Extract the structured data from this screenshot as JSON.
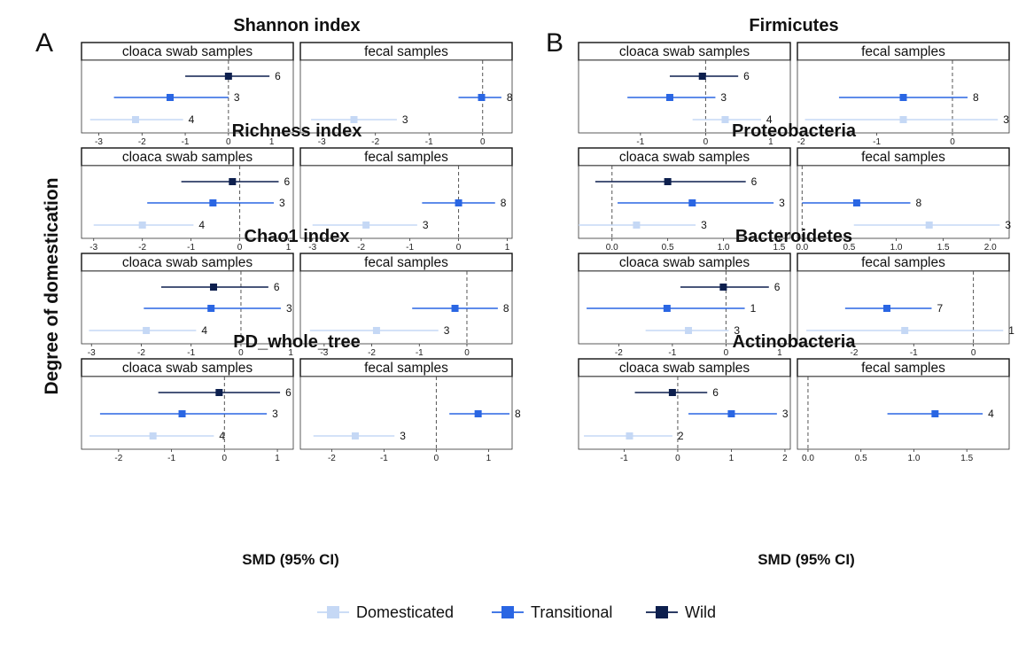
{
  "figure": {
    "panel_labels": [
      "A",
      "B"
    ],
    "ylabel": "Degree of domestication",
    "xlabel": "SMD (95% CI)",
    "facets": [
      "cloaca swab samples",
      "fecal samples"
    ],
    "legend": {
      "placement": "bottom-center",
      "items": [
        {
          "label": "Domesticated",
          "color": "#c5d8f5"
        },
        {
          "label": "Transitional",
          "color": "#2a66e3"
        },
        {
          "label": "Wild",
          "color": "#0d1f4e"
        }
      ]
    }
  },
  "chart_data": [
    {
      "type": "forest",
      "panel": "A",
      "title": "Shannon index",
      "facets": [
        {
          "name": "cloaca swab samples",
          "xlim": [
            -3.4,
            1.5
          ],
          "ticks": [
            -3,
            -2,
            -1,
            0,
            1
          ],
          "rows": [
            {
              "group": "Wild",
              "est": 0.0,
              "lo": -1.0,
              "hi": 0.95,
              "n": "6"
            },
            {
              "group": "Transitional",
              "est": -1.35,
              "lo": -2.65,
              "hi": 0.0,
              "n": "3"
            },
            {
              "group": "Domesticated",
              "est": -2.15,
              "lo": -3.2,
              "hi": -1.05,
              "n": "4"
            }
          ]
        },
        {
          "name": "fecal samples",
          "xlim": [
            -3.4,
            0.55
          ],
          "ticks": [
            -3,
            -2,
            -1,
            0
          ],
          "rows": [
            {
              "group": "Transitional",
              "est": -0.02,
              "lo": -0.45,
              "hi": 0.35,
              "n": "8"
            },
            {
              "group": "Domesticated",
              "est": -2.4,
              "lo": -3.2,
              "hi": -1.6,
              "n": "3"
            }
          ]
        }
      ]
    },
    {
      "type": "forest",
      "panel": "A",
      "title": "Richness index",
      "facets": [
        {
          "name": "cloaca swab samples",
          "xlim": [
            -3.25,
            1.1
          ],
          "ticks": [
            -3,
            -2,
            -1,
            0,
            1
          ],
          "rows": [
            {
              "group": "Wild",
              "est": -0.15,
              "lo": -1.2,
              "hi": 0.8,
              "n": "6"
            },
            {
              "group": "Transitional",
              "est": -0.55,
              "lo": -1.9,
              "hi": 0.7,
              "n": "3"
            },
            {
              "group": "Domesticated",
              "est": -2.0,
              "lo": -3.0,
              "hi": -0.95,
              "n": "4"
            }
          ]
        },
        {
          "name": "fecal samples",
          "xlim": [
            -3.25,
            1.1
          ],
          "ticks": [
            -3,
            -2,
            -1,
            0,
            1
          ],
          "rows": [
            {
              "group": "Transitional",
              "est": 0.0,
              "lo": -0.75,
              "hi": 0.75,
              "n": "8"
            },
            {
              "group": "Domesticated",
              "est": -1.9,
              "lo": -3.0,
              "hi": -0.85,
              "n": "3"
            }
          ]
        }
      ]
    },
    {
      "type": "forest",
      "panel": "A",
      "title": "Chao1 index",
      "facets": [
        {
          "name": "cloaca swab samples",
          "xlim": [
            -3.2,
            1.05
          ],
          "ticks": [
            -3,
            -2,
            -1,
            0,
            1
          ],
          "rows": [
            {
              "group": "Wild",
              "est": -0.55,
              "lo": -1.6,
              "hi": 0.55,
              "n": "6"
            },
            {
              "group": "Transitional",
              "est": -0.6,
              "lo": -1.95,
              "hi": 0.8,
              "n": "3"
            },
            {
              "group": "Domesticated",
              "est": -1.9,
              "lo": -3.05,
              "hi": -0.9,
              "n": "4"
            }
          ]
        },
        {
          "name": "fecal samples",
          "xlim": [
            -3.5,
            0.95
          ],
          "ticks": [
            -3,
            -2,
            -1,
            0
          ],
          "rows": [
            {
              "group": "Transitional",
              "est": -0.25,
              "lo": -1.15,
              "hi": 0.65,
              "n": "8"
            },
            {
              "group": "Domesticated",
              "est": -1.9,
              "lo": -3.3,
              "hi": -0.6,
              "n": "3"
            }
          ]
        }
      ]
    },
    {
      "type": "forest",
      "panel": "A",
      "title": "PD_whole_tree",
      "facets": [
        {
          "name": "cloaca swab samples",
          "xlim": [
            -2.7,
            1.3
          ],
          "ticks": [
            -2,
            -1,
            0,
            1
          ],
          "rows": [
            {
              "group": "Wild",
              "est": -0.1,
              "lo": -1.25,
              "hi": 1.05,
              "n": "6"
            },
            {
              "group": "Transitional",
              "est": -0.8,
              "lo": -2.35,
              "hi": 0.8,
              "n": "3"
            },
            {
              "group": "Domesticated",
              "est": -1.35,
              "lo": -2.55,
              "hi": -0.2,
              "n": "4"
            }
          ]
        },
        {
          "name": "fecal samples",
          "xlim": [
            -2.6,
            1.45
          ],
          "ticks": [
            -2,
            -1,
            0,
            1
          ],
          "rows": [
            {
              "group": "Transitional",
              "est": 0.8,
              "lo": 0.25,
              "hi": 1.4,
              "n": "8"
            },
            {
              "group": "Domesticated",
              "est": -1.55,
              "lo": -2.35,
              "hi": -0.8,
              "n": "3"
            }
          ]
        }
      ]
    },
    {
      "type": "forest",
      "panel": "B",
      "title": "Firmicutes",
      "facets": [
        {
          "name": "cloaca swab samples",
          "xlim": [
            -1.95,
            1.3
          ],
          "ticks": [
            -1,
            0,
            1
          ],
          "rows": [
            {
              "group": "Wild",
              "est": -0.05,
              "lo": -0.55,
              "hi": 0.5,
              "n": "6"
            },
            {
              "group": "Transitional",
              "est": -0.55,
              "lo": -1.2,
              "hi": 0.15,
              "n": "3"
            },
            {
              "group": "Domesticated",
              "est": 0.3,
              "lo": -0.2,
              "hi": 0.85,
              "n": "4"
            }
          ]
        },
        {
          "name": "fecal samples",
          "xlim": [
            -2.05,
            0.75
          ],
          "ticks": [
            -2,
            -1,
            0
          ],
          "rows": [
            {
              "group": "Transitional",
              "est": -0.65,
              "lo": -1.5,
              "hi": 0.2,
              "n": "8"
            },
            {
              "group": "Domesticated",
              "est": -0.65,
              "lo": -1.95,
              "hi": 0.6,
              "n": "3"
            }
          ]
        }
      ]
    },
    {
      "type": "forest",
      "panel": "B",
      "title": "Proteobacteria",
      "facets": [
        {
          "name": "cloaca swab samples",
          "xlim": [
            -0.3,
            1.6
          ],
          "ticks": [
            0.0,
            0.5,
            1.0,
            1.5
          ],
          "tick_labels": [
            "0.0",
            "0.5",
            "1.0",
            "1.5"
          ],
          "rows": [
            {
              "group": "Wild",
              "est": 0.5,
              "lo": -0.15,
              "hi": 1.2,
              "n": "6"
            },
            {
              "group": "Transitional",
              "est": 0.72,
              "lo": 0.05,
              "hi": 1.45,
              "n": "3"
            },
            {
              "group": "Domesticated",
              "est": 0.22,
              "lo": -0.3,
              "hi": 0.75,
              "n": "3"
            }
          ]
        },
        {
          "name": "fecal samples",
          "xlim": [
            -0.05,
            2.2
          ],
          "ticks": [
            0.0,
            0.5,
            1.0,
            1.5,
            2.0
          ],
          "tick_labels": [
            "0.0",
            "0.5",
            "1.0",
            "1.5",
            "2.0"
          ],
          "rows": [
            {
              "group": "Transitional",
              "est": 0.58,
              "lo": 0.0,
              "hi": 1.15,
              "n": "8"
            },
            {
              "group": "Domesticated",
              "est": 1.35,
              "lo": 0.55,
              "hi": 2.1,
              "n": "3"
            }
          ]
        }
      ]
    },
    {
      "type": "forest",
      "panel": "B",
      "title": "Bacteroidetes",
      "facets": [
        {
          "name": "cloaca swab samples",
          "xlim": [
            -2.75,
            1.2
          ],
          "ticks": [
            -2,
            -1,
            0,
            1
          ],
          "rows": [
            {
              "group": "Wild",
              "est": -0.05,
              "lo": -0.85,
              "hi": 0.8,
              "n": "6"
            },
            {
              "group": "Transitional",
              "est": -1.1,
              "lo": -2.6,
              "hi": 0.35,
              "n": "1"
            },
            {
              "group": "Domesticated",
              "est": -0.7,
              "lo": -1.5,
              "hi": 0.05,
              "n": "3"
            }
          ]
        },
        {
          "name": "fecal samples",
          "xlim": [
            -2.95,
            0.6
          ],
          "ticks": [
            -2,
            -1,
            0
          ],
          "rows": [
            {
              "group": "Transitional",
              "est": -1.45,
              "lo": -2.15,
              "hi": -0.7,
              "n": "7"
            },
            {
              "group": "Domesticated",
              "est": -1.15,
              "lo": -2.8,
              "hi": 0.5,
              "n": "1"
            }
          ]
        }
      ]
    },
    {
      "type": "forest",
      "panel": "B",
      "title": "Actinobacteria",
      "facets": [
        {
          "name": "cloaca swab samples",
          "xlim": [
            -1.85,
            2.1
          ],
          "ticks": [
            -1,
            0,
            1,
            2
          ],
          "rows": [
            {
              "group": "Wild",
              "est": -0.1,
              "lo": -0.8,
              "hi": 0.55,
              "n": "6"
            },
            {
              "group": "Transitional",
              "est": 1.0,
              "lo": 0.2,
              "hi": 1.85,
              "n": "3"
            },
            {
              "group": "Domesticated",
              "est": -0.9,
              "lo": -1.75,
              "hi": -0.1,
              "n": "2"
            }
          ]
        },
        {
          "name": "fecal samples",
          "xlim": [
            -0.1,
            1.9
          ],
          "ticks": [
            0.0,
            0.5,
            1.0,
            1.5
          ],
          "tick_labels": [
            "0.0",
            "0.5",
            "1.0",
            "1.5"
          ],
          "rows": [
            {
              "group": "Transitional",
              "est": 1.2,
              "lo": 0.75,
              "hi": 1.65,
              "n": "4"
            }
          ]
        }
      ]
    }
  ]
}
